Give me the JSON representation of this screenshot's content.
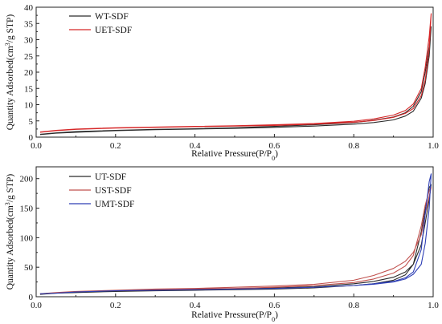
{
  "chart_data": [
    {
      "type": "line",
      "xlabel_parts": [
        "Relative Pressure(P/P",
        "0",
        ")"
      ],
      "ylabel_parts": [
        "Quantity Adsorbed(cm",
        "3",
        "/g STP)"
      ],
      "xlim": [
        0,
        1.0
      ],
      "ylim": [
        0,
        40
      ],
      "xticks": [
        "0.0",
        "0.2",
        "0.4",
        "0.6",
        "0.8",
        "1.0"
      ],
      "yticks": [
        "0",
        "5",
        "10",
        "15",
        "20",
        "25",
        "30",
        "35",
        "40"
      ],
      "grid": false,
      "legend_position": "top-left",
      "series": [
        {
          "name": "WT-SDF",
          "color": "#2b2b2b",
          "x": [
            0.01,
            0.05,
            0.1,
            0.2,
            0.3,
            0.4,
            0.5,
            0.6,
            0.7,
            0.8,
            0.85,
            0.9,
            0.93,
            0.95,
            0.97,
            0.98,
            0.99,
            0.995,
            0.99,
            0.98,
            0.97,
            0.95,
            0.93,
            0.9,
            0.85,
            0.8,
            0.7,
            0.6,
            0.5,
            0.4,
            0.3,
            0.2,
            0.1,
            0.05,
            0.01
          ],
          "y": [
            0.8,
            1.2,
            1.5,
            2.0,
            2.3,
            2.5,
            2.7,
            3.0,
            3.4,
            4.0,
            4.5,
            5.3,
            6.5,
            8.0,
            12.0,
            16.5,
            25.0,
            34.0,
            28.0,
            20.0,
            14.0,
            9.5,
            7.5,
            6.2,
            5.2,
            4.5,
            3.8,
            3.3,
            2.9,
            2.6,
            2.4,
            2.1,
            1.7,
            1.3,
            0.9
          ]
        },
        {
          "name": "UET-SDF",
          "color": "#d62728",
          "x": [
            0.01,
            0.05,
            0.1,
            0.2,
            0.3,
            0.4,
            0.5,
            0.6,
            0.7,
            0.8,
            0.85,
            0.9,
            0.93,
            0.95,
            0.97,
            0.98,
            0.99,
            0.995,
            0.99,
            0.98,
            0.97,
            0.95,
            0.93,
            0.9,
            0.85,
            0.8,
            0.7,
            0.6,
            0.5,
            0.4,
            0.3,
            0.2,
            0.1,
            0.05,
            0.01
          ],
          "y": [
            1.5,
            2.0,
            2.4,
            2.8,
            3.0,
            3.2,
            3.4,
            3.6,
            4.0,
            4.6,
            5.1,
            6.1,
            7.3,
            8.8,
            12.8,
            17.5,
            27.0,
            38.0,
            31.0,
            21.5,
            15.0,
            10.2,
            8.2,
            6.8,
            5.6,
            4.9,
            4.2,
            3.8,
            3.5,
            3.3,
            3.1,
            2.9,
            2.5,
            2.1,
            1.6
          ]
        }
      ]
    },
    {
      "type": "line",
      "xlabel_parts": [
        "Relative Pressure(P/P",
        "0",
        ")"
      ],
      "ylabel_parts": [
        "Quantity Adsorbed(cm",
        "3",
        "/g STP)"
      ],
      "xlim": [
        0,
        1.0
      ],
      "ylim": [
        0,
        220
      ],
      "xticks": [
        "0.0",
        "0.2",
        "0.4",
        "0.6",
        "0.8",
        "1.0"
      ],
      "yticks": [
        "0",
        "50",
        "100",
        "150",
        "200"
      ],
      "grid": false,
      "legend_position": "top-left",
      "series": [
        {
          "name": "UT-SDF",
          "color": "#2b2b2b",
          "x": [
            0.01,
            0.05,
            0.1,
            0.2,
            0.3,
            0.4,
            0.5,
            0.6,
            0.7,
            0.8,
            0.85,
            0.9,
            0.93,
            0.95,
            0.97,
            0.98,
            0.99,
            0.995,
            0.99,
            0.98,
            0.97,
            0.95,
            0.93,
            0.9,
            0.85,
            0.8,
            0.7,
            0.6,
            0.5,
            0.4,
            0.3,
            0.2,
            0.1,
            0.05,
            0.01
          ],
          "y": [
            4,
            6,
            7,
            9,
            10,
            11,
            12,
            13,
            15,
            19,
            22,
            28,
            37,
            55,
            110,
            148,
            185,
            190,
            165,
            125,
            88,
            55,
            42,
            33,
            26,
            22,
            17,
            15,
            13,
            12,
            11,
            10,
            8,
            6,
            5
          ]
        },
        {
          "name": "UST-SDF",
          "color": "#c0504d",
          "x": [
            0.01,
            0.05,
            0.1,
            0.2,
            0.3,
            0.4,
            0.5,
            0.6,
            0.7,
            0.8,
            0.85,
            0.9,
            0.93,
            0.95,
            0.97,
            0.98,
            0.99,
            0.995,
            0.99,
            0.98,
            0.97,
            0.95,
            0.93,
            0.9,
            0.85,
            0.8,
            0.7,
            0.6,
            0.5,
            0.4,
            0.3,
            0.2,
            0.1,
            0.05,
            0.01
          ],
          "y": [
            5,
            7,
            9,
            11,
            12,
            13,
            14,
            16,
            19,
            24,
            30,
            40,
            52,
            70,
            120,
            155,
            180,
            185,
            170,
            140,
            105,
            75,
            60,
            48,
            36,
            28,
            21,
            18,
            16,
            14,
            13,
            11,
            9,
            7,
            5
          ]
        },
        {
          "name": "UMT-SDF",
          "color": "#2e3fb5",
          "x": [
            0.01,
            0.05,
            0.1,
            0.2,
            0.3,
            0.4,
            0.5,
            0.6,
            0.7,
            0.8,
            0.85,
            0.9,
            0.93,
            0.95,
            0.97,
            0.98,
            0.99,
            0.995,
            0.99,
            0.98,
            0.97,
            0.95,
            0.93,
            0.9,
            0.85,
            0.8,
            0.7,
            0.6,
            0.5,
            0.4,
            0.3,
            0.2,
            0.1,
            0.05,
            0.01
          ],
          "y": [
            5,
            6,
            8,
            10,
            11,
            12,
            13,
            14,
            16,
            19,
            22,
            26,
            32,
            42,
            80,
            140,
            195,
            208,
            150,
            90,
            55,
            38,
            30,
            25,
            21,
            19,
            16,
            14,
            13,
            12,
            11,
            10,
            8,
            6,
            5
          ]
        }
      ]
    }
  ]
}
